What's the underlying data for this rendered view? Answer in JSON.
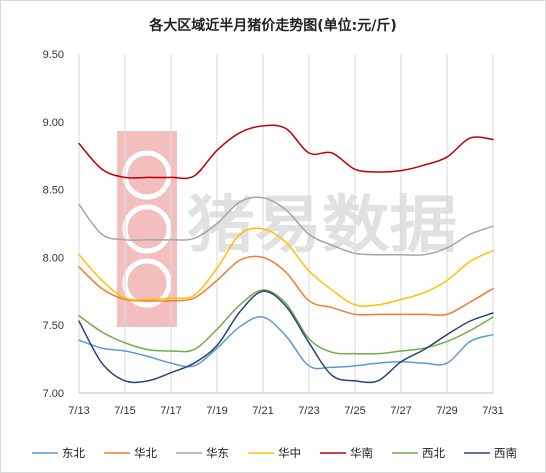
{
  "chart_data": {
    "type": "line",
    "title": "各大区域近半月猪价走势图(单位:元/斤)",
    "watermark_text": "猪易数据",
    "x": [
      "7/13",
      "7/14",
      "7/15",
      "7/16",
      "7/17",
      "7/18",
      "7/19",
      "7/20",
      "7/21",
      "7/22",
      "7/23",
      "7/24",
      "7/25",
      "7/26",
      "7/27",
      "7/28",
      "7/29",
      "7/30",
      "7/31"
    ],
    "x_tick_labels": [
      "7/13",
      "7/15",
      "7/17",
      "7/19",
      "7/21",
      "7/23",
      "7/25",
      "7/27",
      "7/29",
      "7/31"
    ],
    "ylim": [
      7.0,
      9.5
    ],
    "y_tick_labels": [
      "7.00",
      "7.50",
      "8.00",
      "8.50",
      "9.00",
      "9.50"
    ],
    "grid": "vertical",
    "legend_position": "bottom",
    "series": [
      {
        "name": "东北",
        "color": "#5b9bd5",
        "values": [
          7.39,
          7.33,
          7.31,
          7.27,
          7.22,
          7.2,
          7.33,
          7.49,
          7.56,
          7.42,
          7.2,
          7.19,
          7.2,
          7.22,
          7.23,
          7.22,
          7.22,
          7.38,
          7.43
        ]
      },
      {
        "name": "华北",
        "color": "#ed7d31",
        "values": [
          7.93,
          7.77,
          7.69,
          7.68,
          7.68,
          7.7,
          7.83,
          7.98,
          8.0,
          7.89,
          7.68,
          7.63,
          7.58,
          7.58,
          7.58,
          7.58,
          7.58,
          7.67,
          7.77
        ]
      },
      {
        "name": "华东",
        "color": "#a5a5a5",
        "values": [
          8.39,
          8.17,
          8.13,
          8.13,
          8.13,
          8.14,
          8.25,
          8.41,
          8.44,
          8.35,
          8.17,
          8.09,
          8.03,
          8.02,
          8.02,
          8.02,
          8.07,
          8.17,
          8.23
        ]
      },
      {
        "name": "华中",
        "color": "#ffc000",
        "values": [
          8.02,
          7.83,
          7.7,
          7.69,
          7.7,
          7.72,
          7.92,
          8.17,
          8.21,
          8.11,
          7.9,
          7.76,
          7.65,
          7.65,
          7.69,
          7.74,
          7.83,
          7.97,
          8.05
        ]
      },
      {
        "name": "华南",
        "color": "#c00000",
        "values": [
          8.84,
          8.65,
          8.59,
          8.59,
          8.59,
          8.6,
          8.79,
          8.92,
          8.97,
          8.95,
          8.77,
          8.77,
          8.65,
          8.63,
          8.64,
          8.68,
          8.74,
          8.88,
          8.87
        ]
      },
      {
        "name": "西北",
        "color": "#70ad47",
        "values": [
          7.57,
          7.45,
          7.37,
          7.32,
          7.31,
          7.32,
          7.47,
          7.65,
          7.76,
          7.66,
          7.4,
          7.3,
          7.29,
          7.29,
          7.31,
          7.33,
          7.38,
          7.46,
          7.56
        ]
      },
      {
        "name": "西南",
        "color": "#264478",
        "values": [
          7.53,
          7.22,
          7.09,
          7.09,
          7.15,
          7.22,
          7.35,
          7.6,
          7.75,
          7.64,
          7.37,
          7.13,
          7.09,
          7.09,
          7.23,
          7.32,
          7.43,
          7.53,
          7.59
        ]
      }
    ]
  }
}
